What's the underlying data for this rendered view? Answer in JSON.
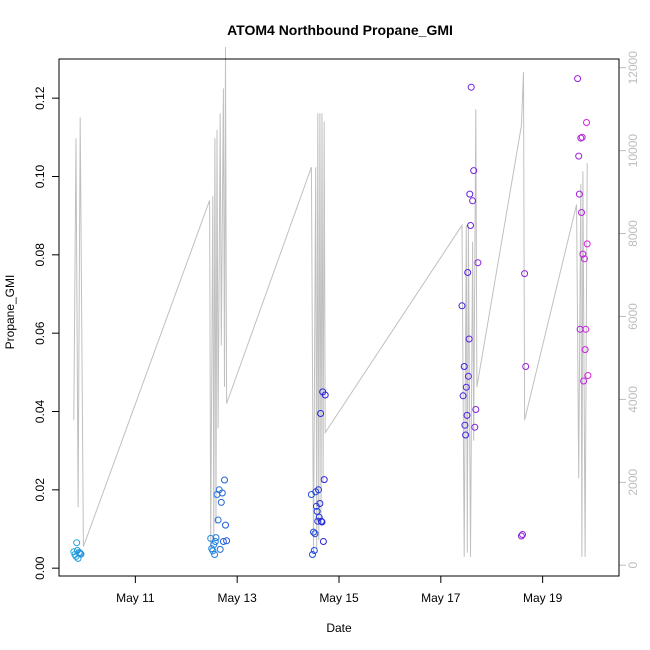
{
  "chart_data": {
    "type": "scatter",
    "title": "ATOM4 Northbound Propane_GMI",
    "xlabel": "Date",
    "ylabel": "Propane_GMI",
    "x_ticks": [
      "May 11",
      "May 13",
      "May 15",
      "May 17",
      "May 19"
    ],
    "y_ticks": [
      "0.00",
      "0.02",
      "0.04",
      "0.06",
      "0.08",
      "0.10",
      "0.12"
    ],
    "y2_ticks": [
      "0",
      "2000",
      "4000",
      "6000",
      "8000",
      "10000",
      "12000"
    ],
    "xlim": [
      "2016-05-09 12:00",
      "2016-05-20 12:00"
    ],
    "ylim": [
      -0.002,
      0.13
    ],
    "y2lim": [
      -260,
      12210
    ],
    "colors": {
      "gradient_start": "#22aadd",
      "gradient_mid": "#2222dd",
      "gradient_end": "#dd22dd",
      "secondary_line": "#c0c0c0"
    },
    "series": [
      {
        "type": "scatter",
        "points": [
          [
            "2016-05-09 19:00",
            0.0042
          ],
          [
            "2016-05-09 19:30",
            0.0035
          ],
          [
            "2016-05-09 20:00",
            0.003
          ],
          [
            "2016-05-09 20:20",
            0.0065
          ],
          [
            "2016-05-09 20:40",
            0.0045
          ],
          [
            "2016-05-09 21:00",
            0.0025
          ],
          [
            "2016-05-09 21:30",
            0.004
          ],
          [
            "2016-05-09 22:00",
            0.0038
          ],
          [
            "2016-05-09 22:20",
            0.0036
          ],
          [
            "2016-05-12 11:30",
            0.0076
          ],
          [
            "2016-05-12 12:00",
            0.005
          ],
          [
            "2016-05-12 12:30",
            0.0044
          ],
          [
            "2016-05-12 13:00",
            0.006
          ],
          [
            "2016-05-12 13:20",
            0.0035
          ],
          [
            "2016-05-12 13:40",
            0.0068
          ],
          [
            "2016-05-12 14:00",
            0.0078
          ],
          [
            "2016-05-12 14:30",
            0.0188
          ],
          [
            "2016-05-12 15:00",
            0.0123
          ],
          [
            "2016-05-12 15:30",
            0.02
          ],
          [
            "2016-05-12 16:00",
            0.0048
          ],
          [
            "2016-05-12 16:30",
            0.0168
          ],
          [
            "2016-05-12 17:00",
            0.0192
          ],
          [
            "2016-05-12 17:30",
            0.0068
          ],
          [
            "2016-05-12 18:00",
            0.0225
          ],
          [
            "2016-05-12 18:30",
            0.011
          ],
          [
            "2016-05-12 19:00",
            0.007
          ],
          [
            "2016-05-14 11:00",
            0.0188
          ],
          [
            "2016-05-14 11:30",
            0.0035
          ],
          [
            "2016-05-14 12:00",
            0.0092
          ],
          [
            "2016-05-14 12:20",
            0.0045
          ],
          [
            "2016-05-14 12:40",
            0.0088
          ],
          [
            "2016-05-14 13:00",
            0.0195
          ],
          [
            "2016-05-14 13:20",
            0.0158
          ],
          [
            "2016-05-14 13:40",
            0.0145
          ],
          [
            "2016-05-14 14:00",
            0.012
          ],
          [
            "2016-05-14 14:20",
            0.02
          ],
          [
            "2016-05-14 14:40",
            0.013
          ],
          [
            "2016-05-14 15:00",
            0.0165
          ],
          [
            "2016-05-14 15:20",
            0.0395
          ],
          [
            "2016-05-14 15:40",
            0.012
          ],
          [
            "2016-05-14 16:00",
            0.0118
          ],
          [
            "2016-05-14 16:20",
            0.045
          ],
          [
            "2016-05-14 16:40",
            0.0068
          ],
          [
            "2016-05-14 17:00",
            0.0226
          ],
          [
            "2016-05-14 17:30",
            0.0442
          ],
          [
            "2016-05-17 10:00",
            0.067
          ],
          [
            "2016-05-17 10:30",
            0.044
          ],
          [
            "2016-05-17 11:00",
            0.0515
          ],
          [
            "2016-05-17 11:20",
            0.0365
          ],
          [
            "2016-05-17 11:40",
            0.034
          ],
          [
            "2016-05-17 12:00",
            0.0462
          ],
          [
            "2016-05-17 12:20",
            0.039
          ],
          [
            "2016-05-17 12:40",
            0.0755
          ],
          [
            "2016-05-17 13:00",
            0.049
          ],
          [
            "2016-05-17 13:20",
            0.0585
          ],
          [
            "2016-05-17 13:40",
            0.0955
          ],
          [
            "2016-05-17 14:00",
            0.0875
          ],
          [
            "2016-05-17 14:20",
            0.1228
          ],
          [
            "2016-05-17 15:00",
            0.0938
          ],
          [
            "2016-05-17 15:30",
            0.1015
          ],
          [
            "2016-05-17 16:00",
            0.036
          ],
          [
            "2016-05-17 16:30",
            0.0405
          ],
          [
            "2016-05-17 17:30",
            0.078
          ],
          [
            "2016-05-18 14:00",
            0.0082
          ],
          [
            "2016-05-18 14:30",
            0.0086
          ],
          [
            "2016-05-18 15:30",
            0.0752
          ],
          [
            "2016-05-18 16:00",
            0.0515
          ],
          [
            "2016-05-19 16:30",
            0.125
          ],
          [
            "2016-05-19 17:00",
            0.1052
          ],
          [
            "2016-05-19 17:20",
            0.0955
          ],
          [
            "2016-05-19 17:40",
            0.061
          ],
          [
            "2016-05-19 18:00",
            0.1098
          ],
          [
            "2016-05-19 18:20",
            0.0908
          ],
          [
            "2016-05-19 18:40",
            0.11
          ],
          [
            "2016-05-19 19:00",
            0.0802
          ],
          [
            "2016-05-19 19:20",
            0.0478
          ],
          [
            "2016-05-19 19:40",
            0.079
          ],
          [
            "2016-05-19 20:00",
            0.0558
          ],
          [
            "2016-05-19 20:20",
            0.061
          ],
          [
            "2016-05-19 20:40",
            0.1138
          ],
          [
            "2016-05-19 21:00",
            0.0828
          ],
          [
            "2016-05-19 21:20",
            0.0492
          ]
        ]
      },
      {
        "type": "line",
        "axis": "right",
        "points": [
          [
            "2016-05-09 19:00",
            3500
          ],
          [
            "2016-05-09 20:00",
            10300
          ],
          [
            "2016-05-09 21:00",
            1400
          ],
          [
            "2016-05-09 22:00",
            10800
          ],
          [
            "2016-05-09 23:30",
            450
          ],
          [
            "2016-05-12 11:00",
            8800
          ],
          [
            "2016-05-12 11:30",
            400
          ],
          [
            "2016-05-12 12:30",
            8900
          ],
          [
            "2016-05-12 13:00",
            550
          ],
          [
            "2016-05-12 13:30",
            10300
          ],
          [
            "2016-05-12 14:00",
            1000
          ],
          [
            "2016-05-12 14:30",
            10500
          ],
          [
            "2016-05-12 15:00",
            3300
          ],
          [
            "2016-05-12 16:00",
            10900
          ],
          [
            "2016-05-12 16:30",
            5300
          ],
          [
            "2016-05-12 17:30",
            11500
          ],
          [
            "2016-05-12 18:00",
            4300
          ],
          [
            "2016-05-12 18:30",
            12500
          ],
          [
            "2016-05-12 19:00",
            3900
          ],
          [
            "2016-05-14 11:00",
            9600
          ],
          [
            "2016-05-14 12:00",
            300
          ],
          [
            "2016-05-14 13:00",
            9600
          ],
          [
            "2016-05-14 13:30",
            400
          ],
          [
            "2016-05-14 14:00",
            10900
          ],
          [
            "2016-05-14 14:30",
            600
          ],
          [
            "2016-05-14 15:00",
            10900
          ],
          [
            "2016-05-14 15:30",
            1000
          ],
          [
            "2016-05-14 16:00",
            10900
          ],
          [
            "2016-05-14 16:30",
            2000
          ],
          [
            "2016-05-14 17:00",
            10700
          ],
          [
            "2016-05-14 17:30",
            3200
          ],
          [
            "2016-05-17 10:00",
            8200
          ],
          [
            "2016-05-17 11:00",
            200
          ],
          [
            "2016-05-17 12:00",
            8200
          ],
          [
            "2016-05-17 12:30",
            300
          ],
          [
            "2016-05-17 13:00",
            8200
          ],
          [
            "2016-05-17 14:00",
            200
          ],
          [
            "2016-05-17 15:00",
            7800
          ],
          [
            "2016-05-17 15:30",
            3000
          ],
          [
            "2016-05-17 16:30",
            11000
          ],
          [
            "2016-05-17 17:00",
            4300
          ],
          [
            "2016-05-18 14:00",
            10600
          ],
          [
            "2016-05-18 15:00",
            11900
          ],
          [
            "2016-05-18 15:30",
            3500
          ],
          [
            "2016-05-19 16:00",
            8700
          ],
          [
            "2016-05-19 17:00",
            2100
          ],
          [
            "2016-05-19 18:00",
            9200
          ],
          [
            "2016-05-19 18:30",
            200
          ],
          [
            "2016-05-19 19:00",
            9500
          ],
          [
            "2016-05-19 20:00",
            200
          ],
          [
            "2016-05-19 21:00",
            9700
          ]
        ]
      }
    ]
  }
}
